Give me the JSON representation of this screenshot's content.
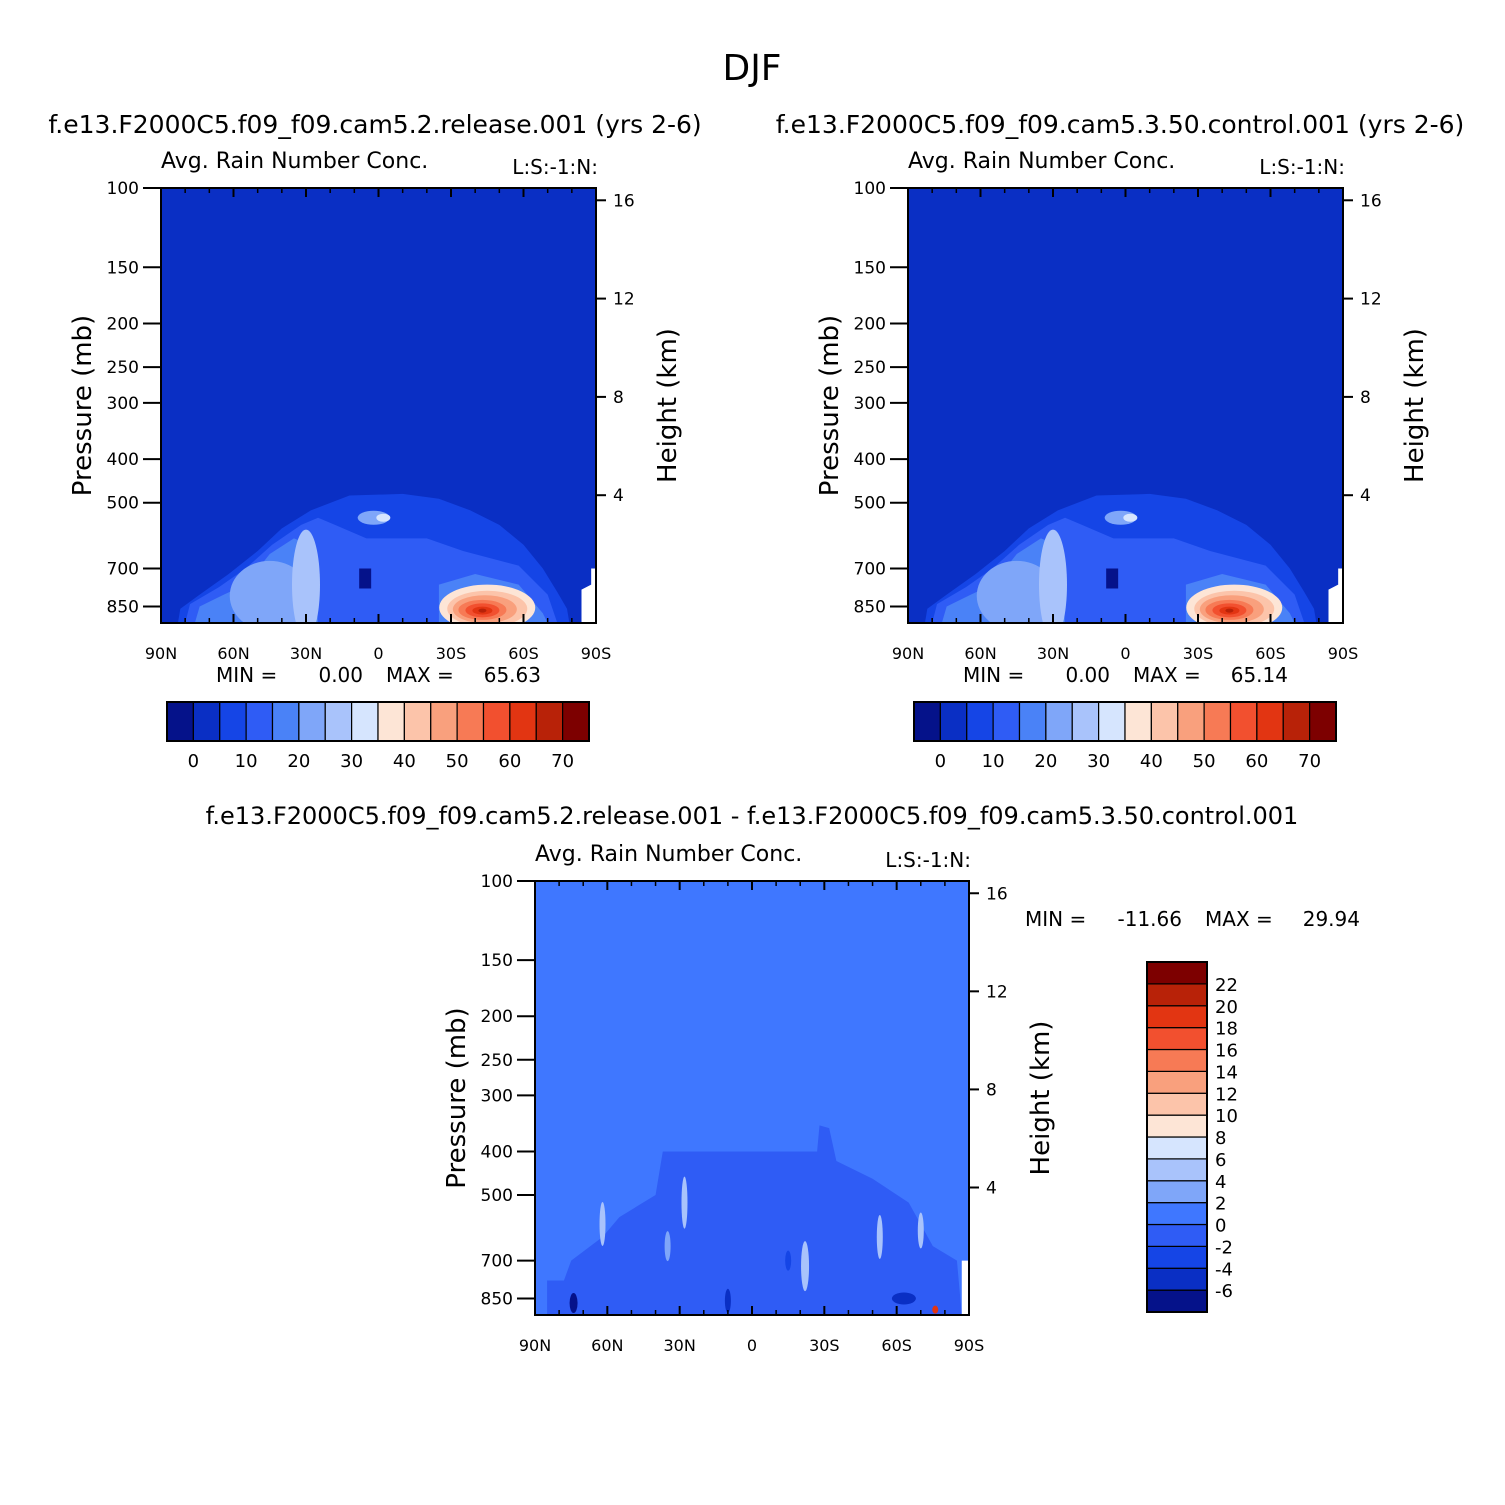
{
  "figure": {
    "title": "DJF",
    "colors": {
      "background": "#ffffff",
      "field_base": "#0a2fc4",
      "diff_base": "#3f77ff",
      "frame": "#000000"
    }
  },
  "chart_data": [
    {
      "id": "panel-left",
      "type": "heatmap",
      "title": "f.e13.F2000C5.f09_f09.cam5.2.release.001 (yrs 2-6)",
      "subtitle": "Avg. Rain Number Conc.",
      "corner_label": "L:S:-1:N:",
      "xlabel": "",
      "ylabel": "Pressure (mb)",
      "y2label": "Height (km)",
      "x_ticks": [
        90,
        60,
        30,
        0,
        -30,
        -60,
        -90
      ],
      "x_tick_labels": [
        "90N",
        "60N",
        "30N",
        "0",
        "30S",
        "60S",
        "90S"
      ],
      "xlim": [
        90,
        -90
      ],
      "y_ticks": [
        100,
        150,
        200,
        250,
        300,
        400,
        500,
        700,
        850
      ],
      "y_tick_labels": [
        "100",
        "150",
        "200",
        "250",
        "300",
        "400",
        "500",
        "700",
        "850"
      ],
      "ylim": [
        100,
        925
      ],
      "y2_ticks": [
        16,
        12,
        8,
        4
      ],
      "y2_tick_labels": [
        "16",
        "12",
        "8",
        "4"
      ],
      "min_label": "MIN =",
      "min_value": "0.00",
      "max_label": "MAX =",
      "max_value": "65.63",
      "colorbar": {
        "orientation": "horizontal",
        "levels": [
          -5,
          0,
          5,
          10,
          15,
          20,
          25,
          30,
          35,
          40,
          45,
          50,
          55,
          60,
          65,
          70
        ],
        "tick_labels": [
          "0",
          "10",
          "20",
          "30",
          "40",
          "50",
          "60",
          "70"
        ],
        "colors": [
          "#05128a",
          "#0a2fc4",
          "#1545e6",
          "#2f5cf5",
          "#4a82f7",
          "#7fa6f9",
          "#a9c3fb",
          "#d6e5fe",
          "#fde5d6",
          "#fcc4aa",
          "#f9a07d",
          "#f77a55",
          "#f2502f",
          "#e23512",
          "#b82208",
          "#7d0000"
        ]
      },
      "features": [
        {
          "kind": "precip-dome",
          "lat": [
            82,
            -78
          ],
          "p_top": 480,
          "value": 10
        },
        {
          "kind": "maximum",
          "lat": -45,
          "p": 860,
          "value": 65.63
        }
      ]
    },
    {
      "id": "panel-right",
      "type": "heatmap",
      "title": "f.e13.F2000C5.f09_f09.cam5.3.50.control.001 (yrs 2-6)",
      "subtitle": "Avg. Rain Number Conc.",
      "corner_label": "L:S:-1:N:",
      "xlabel": "",
      "ylabel": "Pressure (mb)",
      "y2label": "Height (km)",
      "x_ticks": [
        90,
        60,
        30,
        0,
        -30,
        -60,
        -90
      ],
      "x_tick_labels": [
        "90N",
        "60N",
        "30N",
        "0",
        "30S",
        "60S",
        "90S"
      ],
      "xlim": [
        90,
        -90
      ],
      "y_ticks": [
        100,
        150,
        200,
        250,
        300,
        400,
        500,
        700,
        850
      ],
      "y_tick_labels": [
        "100",
        "150",
        "200",
        "250",
        "300",
        "400",
        "500",
        "700",
        "850"
      ],
      "ylim": [
        100,
        925
      ],
      "y2_ticks": [
        16,
        12,
        8,
        4
      ],
      "y2_tick_labels": [
        "16",
        "12",
        "8",
        "4"
      ],
      "min_label": "MIN =",
      "min_value": "0.00",
      "max_label": "MAX =",
      "max_value": "65.14",
      "colorbar": {
        "orientation": "horizontal",
        "levels": [
          -5,
          0,
          5,
          10,
          15,
          20,
          25,
          30,
          35,
          40,
          45,
          50,
          55,
          60,
          65,
          70
        ],
        "tick_labels": [
          "0",
          "10",
          "20",
          "30",
          "40",
          "50",
          "60",
          "70"
        ],
        "colors": [
          "#05128a",
          "#0a2fc4",
          "#1545e6",
          "#2f5cf5",
          "#4a82f7",
          "#7fa6f9",
          "#a9c3fb",
          "#d6e5fe",
          "#fde5d6",
          "#fcc4aa",
          "#f9a07d",
          "#f77a55",
          "#f2502f",
          "#e23512",
          "#b82208",
          "#7d0000"
        ]
      },
      "features": [
        {
          "kind": "precip-dome",
          "lat": [
            82,
            -78
          ],
          "p_top": 480,
          "value": 10
        },
        {
          "kind": "maximum",
          "lat": -45,
          "p": 860,
          "value": 65.14
        }
      ]
    },
    {
      "id": "panel-diff",
      "type": "heatmap",
      "title": "f.e13.F2000C5.f09_f09.cam5.2.release.001 - f.e13.F2000C5.f09_f09.cam5.3.50.control.001",
      "subtitle": "Avg. Rain Number Conc.",
      "corner_label": "L:S:-1:N:",
      "xlabel": "",
      "ylabel": "Pressure (mb)",
      "y2label": "Height (km)",
      "x_ticks": [
        90,
        60,
        30,
        0,
        -30,
        -60,
        -90
      ],
      "x_tick_labels": [
        "90N",
        "60N",
        "30N",
        "0",
        "30S",
        "60S",
        "90S"
      ],
      "xlim": [
        90,
        -90
      ],
      "y_ticks": [
        100,
        150,
        200,
        250,
        300,
        400,
        500,
        700,
        850
      ],
      "y_tick_labels": [
        "100",
        "150",
        "200",
        "250",
        "300",
        "400",
        "500",
        "700",
        "850"
      ],
      "ylim": [
        100,
        925
      ],
      "y2_ticks": [
        16,
        12,
        8,
        4
      ],
      "y2_tick_labels": [
        "16",
        "12",
        "8",
        "4"
      ],
      "min_label": "MIN =",
      "min_value": "-11.66",
      "max_label": "MAX =",
      "max_value": "29.94",
      "colorbar": {
        "orientation": "vertical",
        "levels": [
          -8,
          -6,
          -4,
          -2,
          0,
          2,
          4,
          6,
          8,
          10,
          12,
          14,
          16,
          18,
          20,
          22,
          24
        ],
        "tick_labels": [
          "-6",
          "-4",
          "-2",
          "0",
          "2",
          "4",
          "6",
          "8",
          "10",
          "12",
          "14",
          "16",
          "18",
          "20",
          "22"
        ],
        "colors": [
          "#05128a",
          "#0a2fc4",
          "#1545e6",
          "#2f5cf5",
          "#3f77ff",
          "#7fa6f9",
          "#a9c3fb",
          "#d6e5fe",
          "#fde5d6",
          "#fcc4aa",
          "#f9a07d",
          "#f77a55",
          "#f2502f",
          "#e23512",
          "#b82208",
          "#7d0000"
        ]
      },
      "features": [
        {
          "kind": "noise-region",
          "lat": [
            85,
            -87
          ],
          "p_top": 400,
          "value": -2
        },
        {
          "kind": "maximum",
          "lat": -76,
          "p": 880,
          "value": 29.94
        }
      ]
    }
  ]
}
